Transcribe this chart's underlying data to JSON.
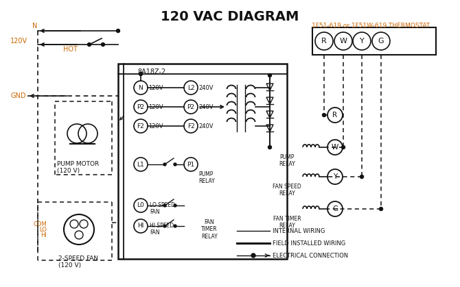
{
  "title": "120 VAC DIAGRAM",
  "title_fontsize": 14,
  "thermostat_label": "1F51-619 or 1F51W-619 THERMOSTAT",
  "thermostat_terminals": [
    "R",
    "W",
    "Y",
    "G"
  ],
  "controller_label": "8A18Z-2",
  "input_terminals_left": [
    {
      "label": "N",
      "voltage": "120V"
    },
    {
      "label": "P2",
      "voltage": "120V"
    },
    {
      "label": "F2",
      "voltage": "120V"
    }
  ],
  "input_terminals_right": [
    {
      "label": "L2",
      "voltage": "240V"
    },
    {
      "label": "P2",
      "voltage": "240V"
    },
    {
      "label": "F2",
      "voltage": "240V"
    }
  ],
  "orange_color": "#cc6600",
  "black_color": "#111111",
  "bg_color": "#ffffff",
  "pump_motor_label": "PUMP MOTOR\n(120 V)",
  "fan_label": "2-SPEED FAN\n(120 V)"
}
